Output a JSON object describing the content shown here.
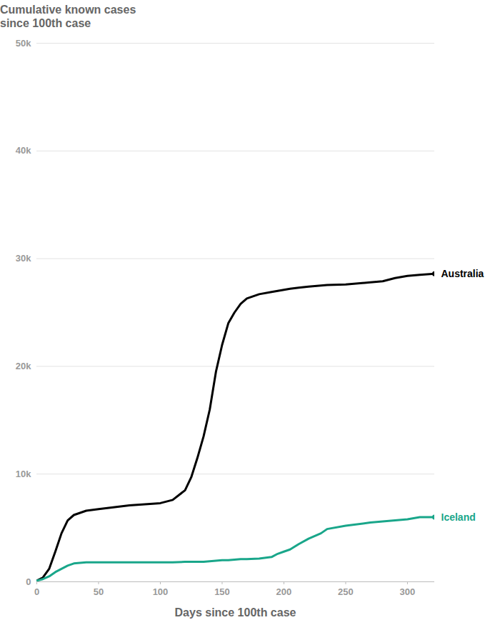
{
  "chart_data": {
    "type": "line",
    "y_label": "Cumulative known cases since 100th case",
    "x_label": "Days since 100th case",
    "x": [
      0,
      5,
      10,
      15,
      20,
      25,
      30,
      40,
      50,
      75,
      100,
      110,
      120,
      125,
      130,
      135,
      140,
      145,
      150,
      155,
      160,
      165,
      170,
      180,
      190,
      195,
      200,
      205,
      212,
      220,
      230,
      235,
      250,
      270,
      280,
      290,
      300,
      310,
      322
    ],
    "series": [
      {
        "name": "Australia",
        "color": "#000000",
        "values": [
          100,
          400,
          1200,
          2800,
          4500,
          5700,
          6200,
          6600,
          6750,
          7100,
          7300,
          7600,
          8500,
          9700,
          11500,
          13500,
          16000,
          19500,
          22000,
          24000,
          25000,
          25800,
          26300,
          26700,
          26900,
          27000,
          27100,
          27200,
          27300,
          27400,
          27500,
          27550,
          27600,
          27800,
          27900,
          28200,
          28400,
          28500,
          28600
        ]
      },
      {
        "name": "Iceland",
        "color": "#19a68a",
        "values": [
          100,
          250,
          500,
          900,
          1200,
          1500,
          1700,
          1800,
          1800,
          1800,
          1800,
          1800,
          1850,
          1850,
          1850,
          1850,
          1900,
          1950,
          2000,
          2000,
          2050,
          2100,
          2100,
          2150,
          2300,
          2600,
          2800,
          3000,
          3500,
          4000,
          4500,
          4900,
          5200,
          5500,
          5600,
          5700,
          5800,
          6000,
          6000
        ]
      }
    ],
    "xlim": [
      0,
      322
    ],
    "xticks": [
      0,
      50,
      100,
      150,
      200,
      250,
      300
    ],
    "ylim": [
      0,
      50000
    ],
    "yticks": [
      0,
      {
        "value": 10000,
        "label": "10k"
      },
      {
        "value": 20000,
        "label": "20k"
      },
      {
        "value": 30000,
        "label": "30k"
      },
      {
        "value": 40000,
        "label": "40k"
      },
      {
        "value": 50000,
        "label": "50k"
      }
    ],
    "grid": true
  }
}
